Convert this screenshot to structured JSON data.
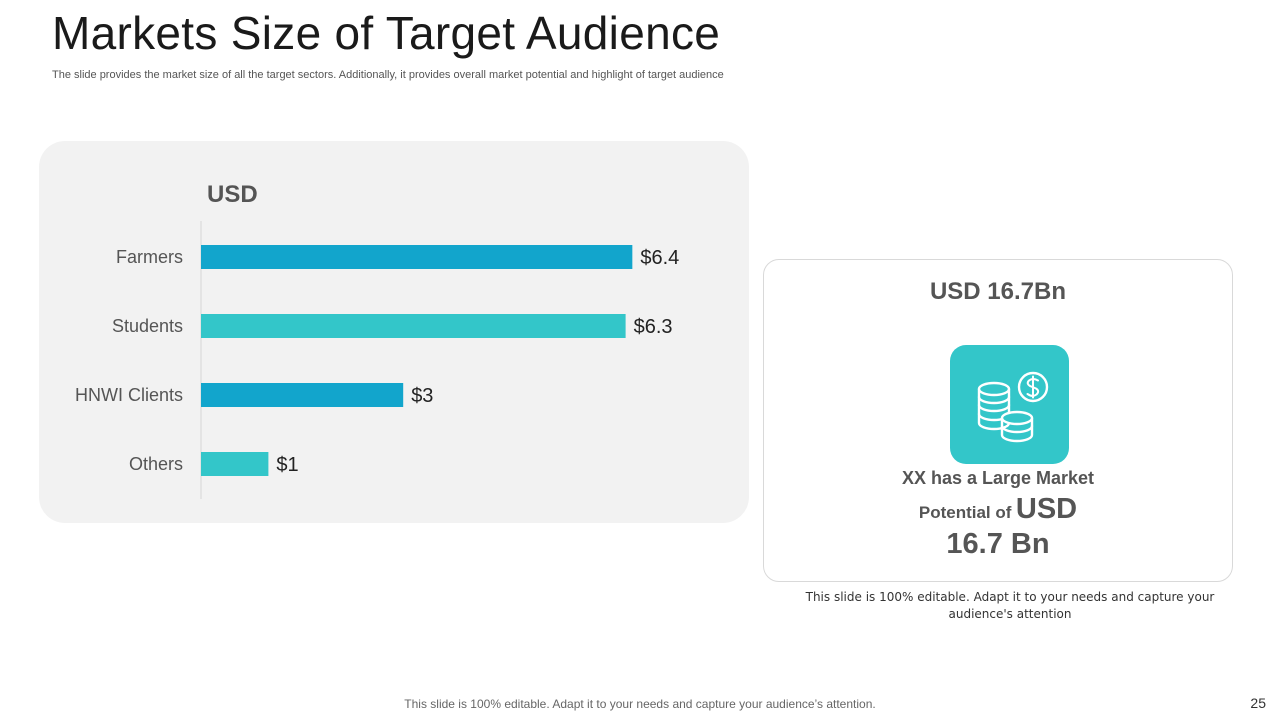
{
  "header": {
    "title": "Markets Size of Target Audience",
    "subtitle": "The slide provides the market size of all the target sectors. Additionally, it provides overall market potential and highlight of target audience"
  },
  "chart_data": {
    "type": "bar",
    "orientation": "horizontal",
    "title": "USD",
    "categories": [
      "Farmers",
      "Students",
      "HNWI Clients",
      "Others"
    ],
    "values": [
      6.4,
      6.3,
      3,
      1
    ],
    "value_labels": [
      "$6.4",
      "$6.3",
      "$3",
      "$1"
    ],
    "colors": [
      "#12a5cc",
      "#33c6c9",
      "#12a5cc",
      "#33c6c9"
    ],
    "xlabel": "",
    "ylabel": "",
    "xlim": [
      0,
      7.3
    ],
    "grid": false
  },
  "side_card": {
    "heading": "USD 16.7Bn",
    "icon": "coins-dollar-icon",
    "line1": "XX has a Large Market",
    "line2_prefix": "Potential of",
    "line2_big": "USD",
    "line3": "16.7 Bn"
  },
  "note": "This slide is 100% editable. Adapt it to your needs and capture your audience's attention",
  "footer": {
    "text": "This slide is 100% editable. Adapt it to your needs and capture your audience’s attention.",
    "page_number": "25"
  },
  "colors": {
    "accent_blue": "#12a5cc",
    "accent_teal": "#33c6c9",
    "panel_bg": "#f2f2f2"
  }
}
